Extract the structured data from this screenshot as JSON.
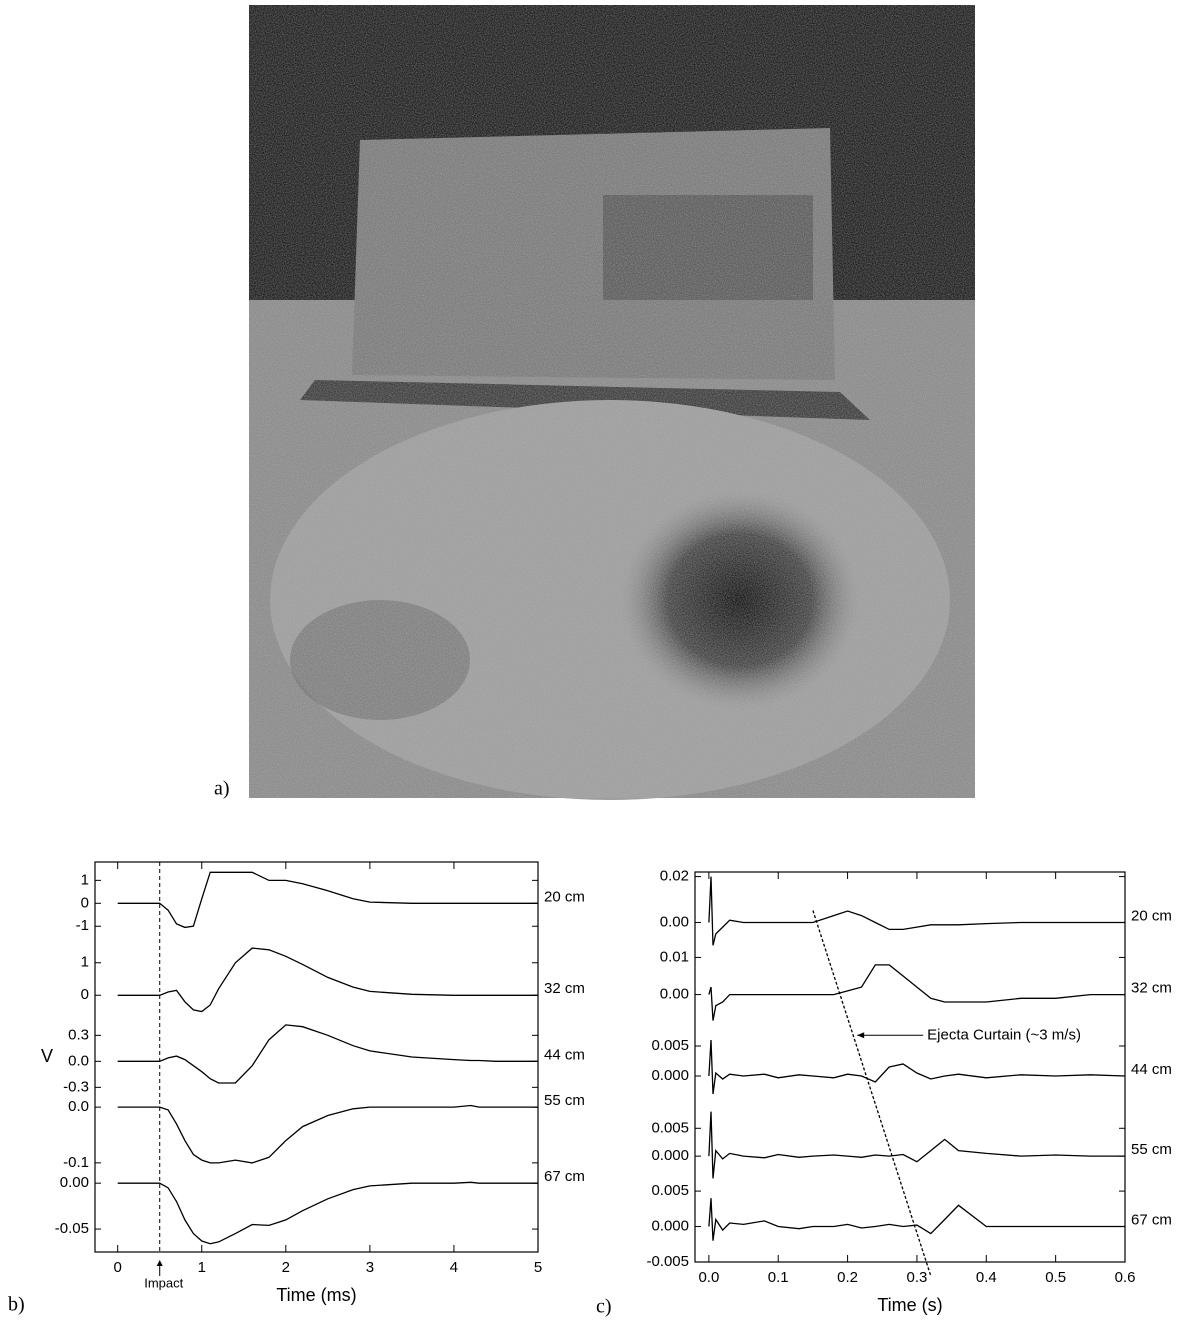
{
  "figure": {
    "panel_labels": [
      "a)",
      "b)",
      "c)"
    ]
  },
  "chart_data": [
    {
      "type": "line",
      "color": "#000000",
      "xlabel": "Time (ms)",
      "ylabel": "V",
      "xlim": [
        -0.27,
        5
      ],
      "xticks": [
        0,
        1,
        2,
        3,
        4,
        5
      ],
      "x": [
        0,
        0.5,
        0.6,
        0.7,
        0.8,
        0.9,
        1.0,
        1.1,
        1.2,
        1.4,
        1.6,
        1.8,
        2.0,
        2.2,
        2.5,
        2.8,
        3.0,
        3.5,
        4.0,
        4.2,
        4.3,
        4.5,
        5.0
      ],
      "series": [
        {
          "name": "20 cm",
          "ylim": [
            -1.6,
            1.8
          ],
          "yticks": [
            -1,
            0,
            1
          ],
          "values": [
            0,
            0,
            -0.3,
            -0.9,
            -1.05,
            -1.0,
            0.2,
            1.35,
            1.35,
            1.35,
            1.35,
            1.0,
            1.0,
            0.85,
            0.55,
            0.2,
            0.05,
            0,
            0,
            0,
            0,
            0,
            0
          ]
        },
        {
          "name": "32 cm",
          "ylim": [
            -0.7,
            1.7
          ],
          "yticks": [
            0,
            1
          ],
          "values": [
            0,
            0,
            0.1,
            0.15,
            -0.2,
            -0.45,
            -0.5,
            -0.3,
            0.2,
            1.0,
            1.45,
            1.4,
            1.2,
            0.95,
            0.55,
            0.25,
            0.12,
            0.03,
            0,
            0,
            0,
            0,
            0
          ]
        },
        {
          "name": "44 cm",
          "ylim": [
            -0.4,
            0.5
          ],
          "yticks": [
            -0.3,
            {
              "value": 0,
              "label": "0.0"
            },
            0.3
          ],
          "values": [
            0,
            0,
            0.04,
            0.06,
            0.02,
            -0.05,
            -0.12,
            -0.2,
            -0.25,
            -0.25,
            -0.05,
            0.25,
            0.42,
            0.4,
            0.3,
            0.18,
            0.12,
            0.05,
            0.02,
            0.01,
            0.01,
            0,
            0
          ]
        },
        {
          "name": "55 cm",
          "ylim": [
            -0.12,
            0.02
          ],
          "yticks": [
            -0.1,
            {
              "value": 0,
              "label": "0.0"
            }
          ],
          "values": [
            0,
            0,
            -0.005,
            -0.03,
            -0.06,
            -0.085,
            -0.095,
            -0.1,
            -0.1,
            -0.095,
            -0.1,
            -0.09,
            -0.06,
            -0.035,
            -0.015,
            -0.003,
            0,
            0,
            0,
            0.003,
            0,
            0,
            0
          ]
        },
        {
          "name": "67 cm",
          "ylim": [
            -0.075,
            0.01
          ],
          "yticks": [
            -0.05,
            {
              "value": 0,
              "label": "0.00"
            }
          ],
          "values": [
            0,
            0,
            -0.005,
            -0.02,
            -0.04,
            -0.055,
            -0.063,
            -0.066,
            -0.064,
            -0.055,
            -0.045,
            -0.046,
            -0.04,
            -0.03,
            -0.017,
            -0.007,
            -0.003,
            0,
            0,
            0.001,
            0,
            0,
            0
          ]
        }
      ],
      "annotations": [
        {
          "text": "Impact",
          "x": 0.5
        }
      ]
    },
    {
      "type": "line",
      "color": "#000000",
      "xlabel": "Time (s)",
      "xlim": [
        -0.02,
        0.6
      ],
      "xticks": [
        {
          "value": 0,
          "label": "0.0"
        },
        0.1,
        0.2,
        0.3,
        0.4,
        0.5,
        0.6
      ],
      "x": [
        0,
        0.003,
        0.006,
        0.01,
        0.02,
        0.03,
        0.05,
        0.08,
        0.1,
        0.13,
        0.15,
        0.18,
        0.2,
        0.22,
        0.24,
        0.26,
        0.28,
        0.3,
        0.32,
        0.34,
        0.36,
        0.4,
        0.45,
        0.5,
        0.55,
        0.6
      ],
      "series": [
        {
          "name": "20 cm",
          "ylim": [
            -0.012,
            0.022
          ],
          "yticks": [
            {
              "value": 0,
              "label": "0.00"
            },
            0.02
          ],
          "values": [
            0,
            0.02,
            -0.01,
            -0.005,
            -0.002,
            0.001,
            0,
            0,
            0,
            0,
            0,
            0.003,
            0.005,
            0.003,
            0,
            -0.003,
            -0.003,
            -0.002,
            -0.001,
            -0.001,
            -0.001,
            -0.0005,
            0,
            0,
            0,
            0
          ]
        },
        {
          "name": "32 cm",
          "ylim": [
            -0.009,
            0.012
          ],
          "yticks": [
            {
              "value": 0,
              "label": "0.00"
            },
            0.01
          ],
          "values": [
            0,
            0.002,
            -0.007,
            -0.003,
            -0.002,
            0,
            0,
            0,
            0,
            0,
            0,
            0,
            0.001,
            0.002,
            0.008,
            0.008,
            0.005,
            0.002,
            -0.001,
            -0.002,
            -0.002,
            -0.002,
            -0.001,
            -0.001,
            0,
            0
          ]
        },
        {
          "name": "44 cm",
          "ylim": [
            -0.005,
            0.008
          ],
          "yticks": [
            {
              "value": 0,
              "label": "0.000"
            },
            0.005
          ],
          "values": [
            0,
            0.006,
            -0.003,
            0.0005,
            -0.0005,
            0.0003,
            0,
            0.0003,
            -0.0003,
            0.0002,
            0,
            -0.0003,
            0.0003,
            0,
            -0.001,
            0.0015,
            0.002,
            0.0005,
            -0.0005,
            0,
            0.0003,
            -0.0003,
            0.0002,
            0,
            0.0002,
            0
          ]
        },
        {
          "name": "55 cm",
          "ylim": [
            -0.005,
            0.009
          ],
          "yticks": [
            {
              "value": 0,
              "label": "0.000"
            },
            0.005
          ],
          "values": [
            0,
            0.008,
            -0.004,
            0.001,
            -0.0005,
            0.0005,
            0,
            -0.0003,
            0.0003,
            -0.0002,
            0,
            0.0002,
            0,
            -0.0002,
            0.0002,
            0,
            0.0003,
            -0.001,
            0.001,
            0.003,
            0.001,
            0.0005,
            0,
            0.0002,
            0,
            0
          ]
        },
        {
          "name": "67 cm",
          "ylim": [
            -0.005,
            0.006
          ],
          "yticks": [
            -0.005,
            {
              "value": 0,
              "label": "0.000"
            },
            0.005
          ],
          "values": [
            0,
            0.004,
            -0.002,
            0.001,
            -0.0005,
            0.0005,
            0.0003,
            0.0008,
            0,
            -0.0003,
            0,
            0,
            0.0003,
            -0.0002,
            0,
            0.0003,
            0,
            0.0002,
            -0.001,
            0.001,
            0.003,
            0,
            0,
            0,
            0,
            0
          ]
        }
      ],
      "annotations": [
        {
          "text": "Ejecta Curtain (~3 m/s)",
          "x": [
            0.15,
            0.32
          ]
        }
      ]
    }
  ]
}
